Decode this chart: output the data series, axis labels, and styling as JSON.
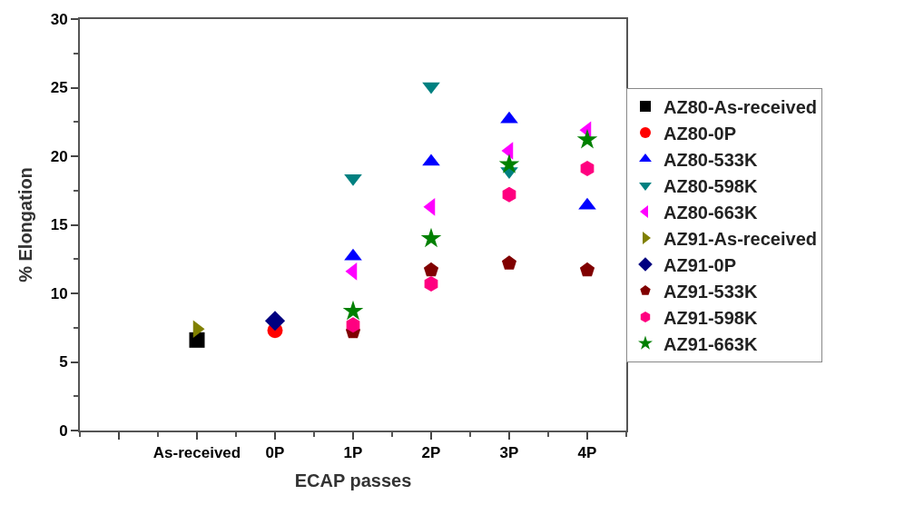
{
  "chart_data": {
    "type": "scatter",
    "xlabel": "ECAP passes",
    "ylabel": "% Elongation",
    "categories": [
      null,
      "As-received",
      "0P",
      "1P",
      "2P",
      "3P",
      "4P"
    ],
    "ylim": [
      0,
      30
    ],
    "yticks": [
      0,
      5,
      10,
      15,
      20,
      25,
      30
    ],
    "legend": "right",
    "series": [
      {
        "name": "AZ80-As-received",
        "color": "#000000",
        "marker": "square",
        "values": [
          null,
          6.6,
          null,
          null,
          null,
          null,
          null
        ]
      },
      {
        "name": "AZ80-0P",
        "color": "#ff0000",
        "marker": "circle",
        "values": [
          null,
          null,
          7.3,
          null,
          null,
          null,
          null
        ]
      },
      {
        "name": "AZ80-533K",
        "color": "#0000ff",
        "marker": "triangle",
        "values": [
          null,
          null,
          null,
          12.7,
          19.6,
          22.7,
          16.4
        ]
      },
      {
        "name": "AZ80-598K",
        "color": "#008080",
        "marker": "triangle-down",
        "values": [
          null,
          null,
          null,
          18.4,
          25.1,
          18.9,
          null
        ]
      },
      {
        "name": "AZ80-663K",
        "color": "#ff00ff",
        "marker": "triangle-left",
        "values": [
          null,
          null,
          null,
          11.6,
          16.3,
          20.4,
          21.9
        ]
      },
      {
        "name": "AZ91-As-received",
        "color": "#808000",
        "marker": "triangle-right",
        "values": [
          null,
          7.4,
          null,
          null,
          null,
          null,
          null
        ]
      },
      {
        "name": "AZ91-0P",
        "color": "#000080",
        "marker": "diamond",
        "values": [
          null,
          null,
          8.0,
          null,
          null,
          null,
          null
        ]
      },
      {
        "name": "AZ91-533K",
        "color": "#800000",
        "values": [
          null,
          null,
          null,
          7.2,
          11.7,
          12.2,
          11.7
        ]
      },
      {
        "name": "AZ91-598K",
        "color": "#ff0080",
        "values": [
          null,
          null,
          null,
          7.7,
          10.7,
          17.2,
          19.1
        ]
      },
      {
        "name": "AZ91-663K",
        "color": "#008000",
        "marker": "star",
        "values": [
          null,
          null,
          null,
          8.7,
          14.0,
          19.4,
          21.2
        ]
      }
    ]
  }
}
